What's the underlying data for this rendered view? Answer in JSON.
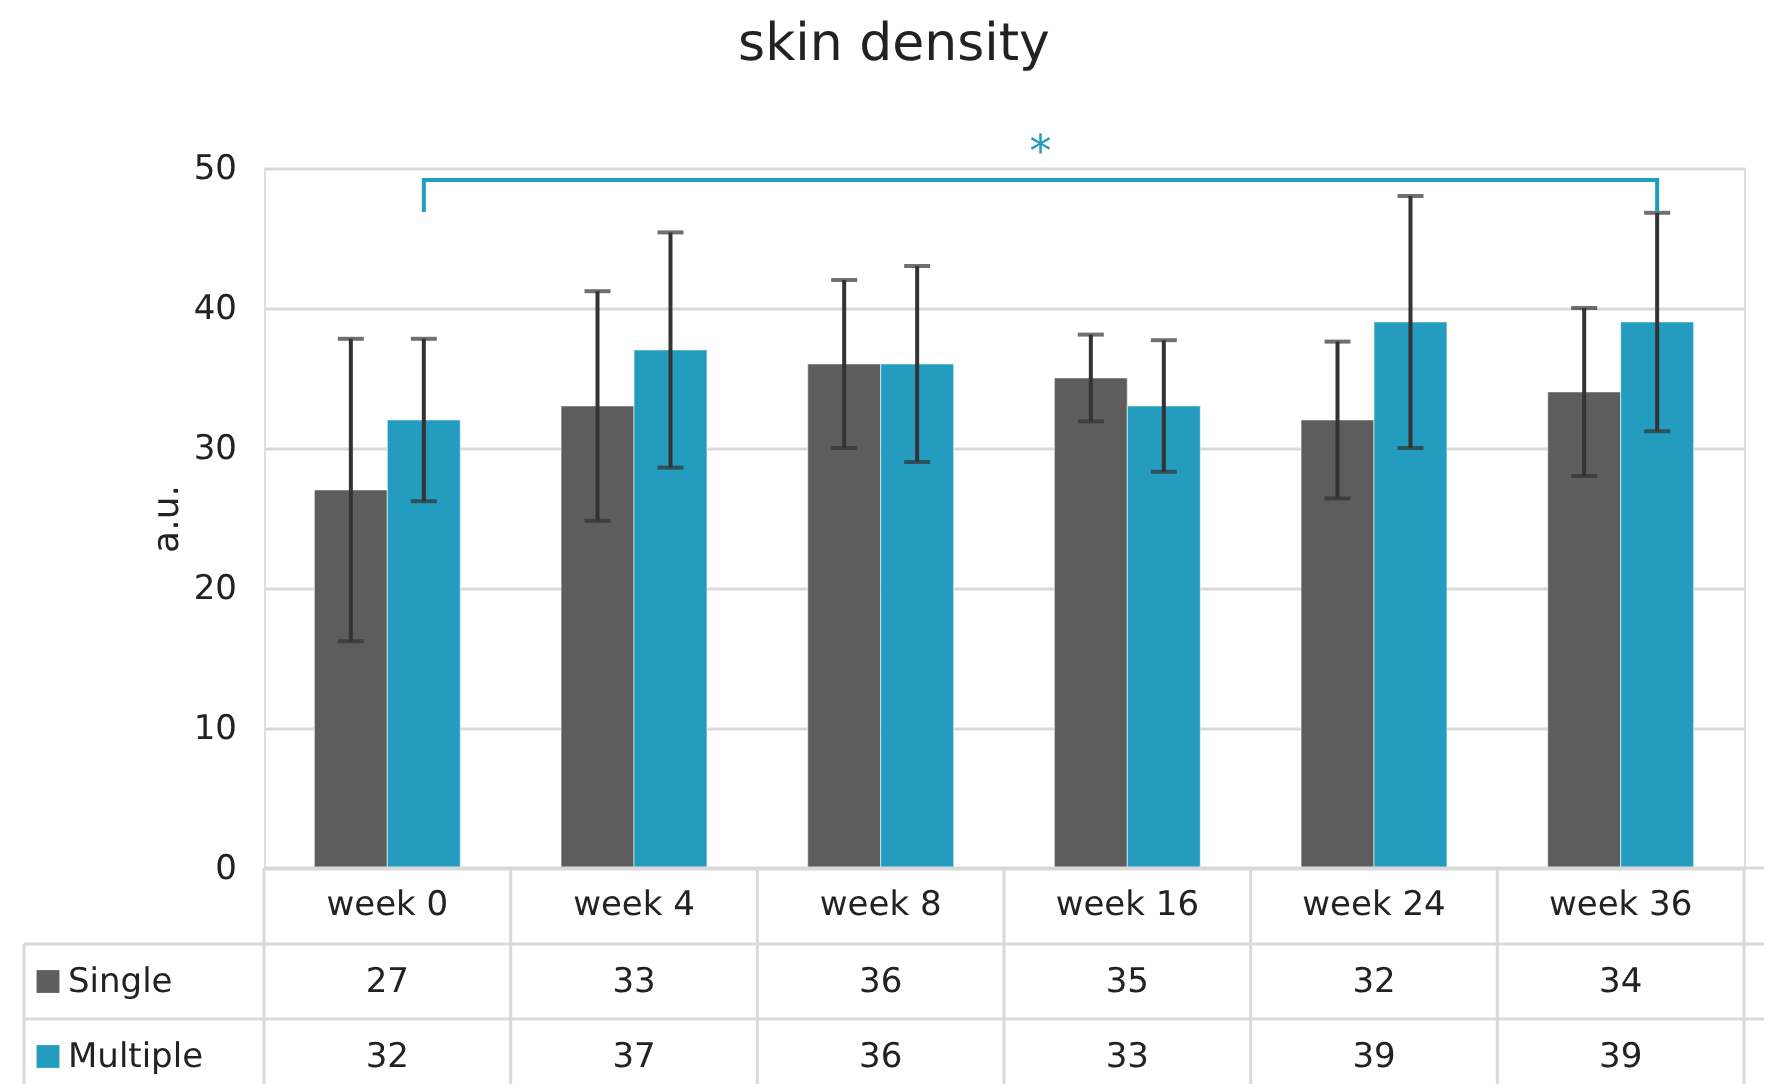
{
  "chart_data": {
    "type": "bar",
    "title": "skin density",
    "ylabel": "a.u.",
    "categories": [
      "week 0",
      "week 4",
      "week 8",
      "week 16",
      "week 24",
      "week 36"
    ],
    "series": [
      {
        "name": "Single",
        "color": "#5d5d5d",
        "values": [
          27,
          33,
          36,
          35,
          32,
          34
        ],
        "errors": [
          10.8,
          8.2,
          6,
          3.1,
          5.6,
          6
        ]
      },
      {
        "name": "Multiple",
        "color": "#239cbf",
        "values": [
          32,
          37,
          36,
          33,
          39,
          39
        ],
        "errors": [
          5.8,
          8.4,
          7,
          4.7,
          9,
          7.8
        ]
      }
    ],
    "ylim": [
      0,
      50
    ],
    "yticks": [
      0,
      10,
      20,
      30,
      40,
      50
    ],
    "grid": "y",
    "legend": "bottom",
    "data_labels": true,
    "annotations": [
      "*"
    ]
  }
}
